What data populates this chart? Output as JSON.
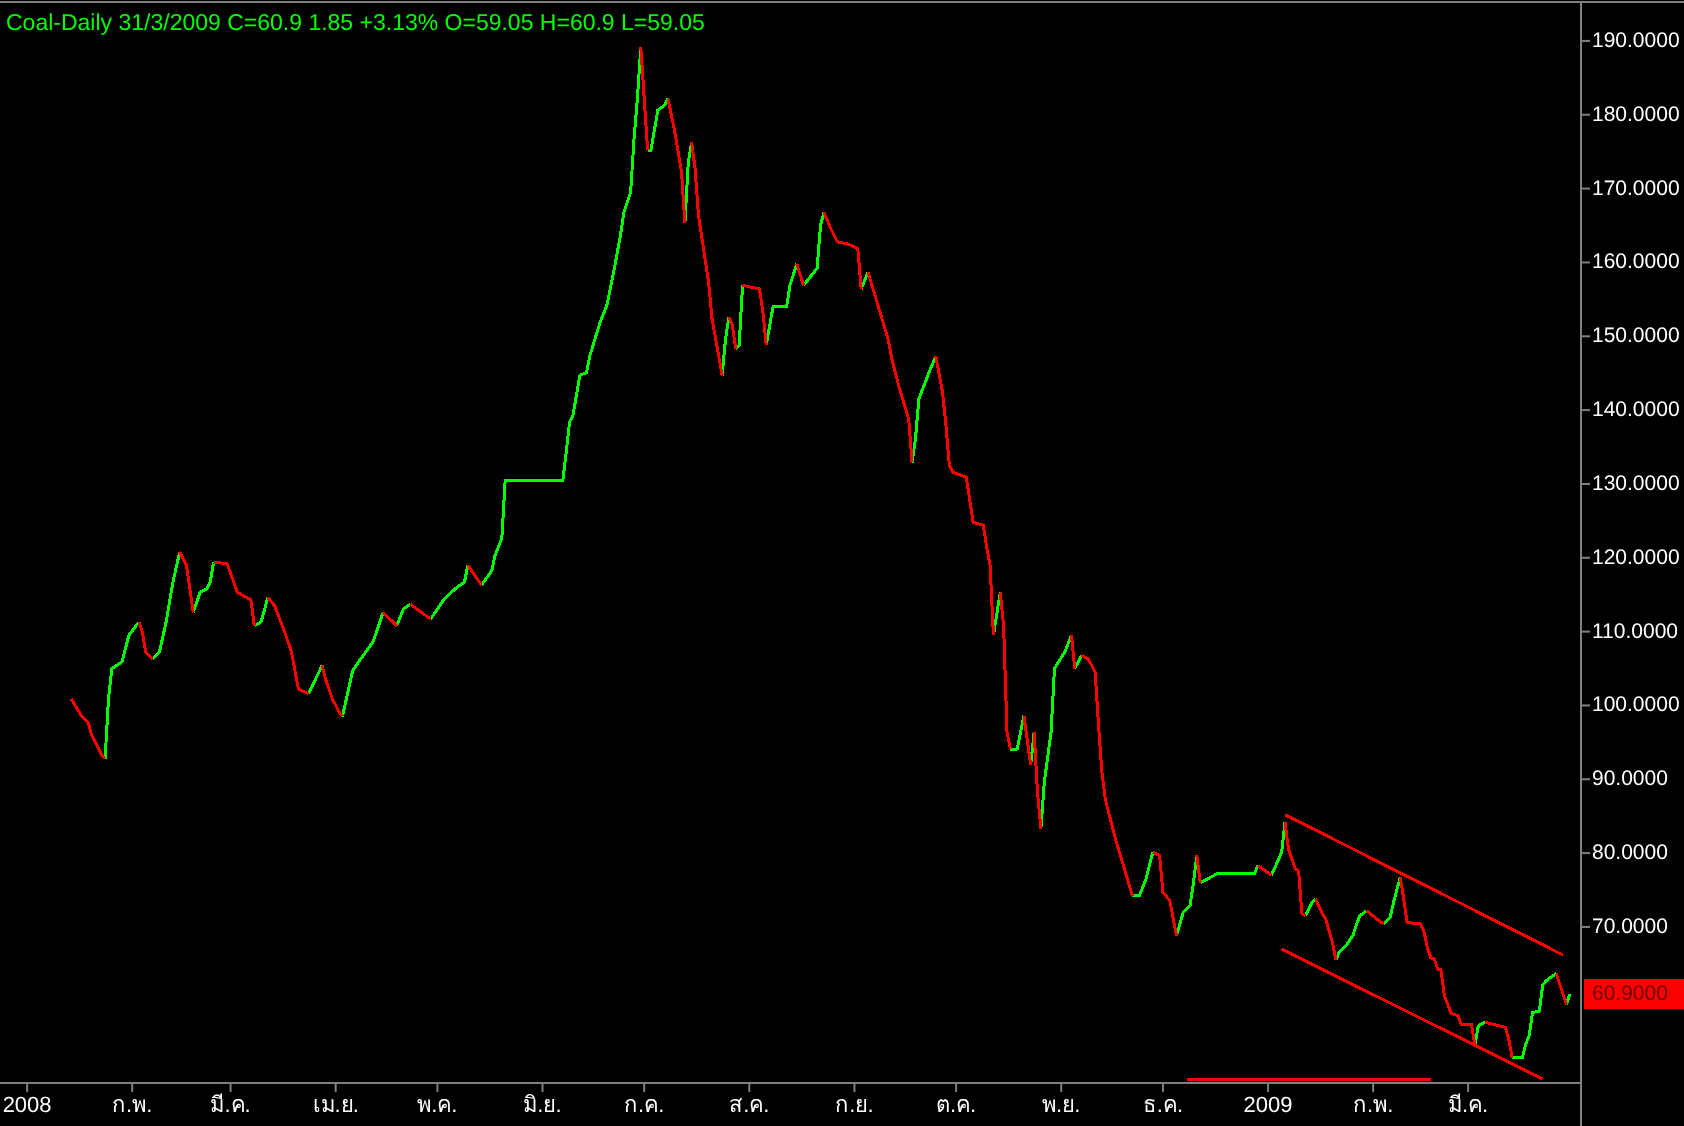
{
  "chart_data": {
    "type": "line",
    "title": "Coal-Daily 31/3/2009 C=60.9 1.85 +3.13% O=59.05 H=60.9 L=59.05",
    "xlim": [
      "2007-12-24",
      "2009-04-03"
    ],
    "xticks": [
      {
        "value": "2008-01-01",
        "label": "2008"
      },
      {
        "value": "2008-02-01",
        "label": "ก.พ."
      },
      {
        "value": "2008-03-01",
        "label": "มี.ค."
      },
      {
        "value": "2008-04-01",
        "label": "เม.ย."
      },
      {
        "value": "2008-05-01",
        "label": "พ.ค."
      },
      {
        "value": "2008-06-01",
        "label": "มิ.ย."
      },
      {
        "value": "2008-07-01",
        "label": "ก.ค."
      },
      {
        "value": "2008-08-01",
        "label": "ส.ค."
      },
      {
        "value": "2008-09-01",
        "label": "ก.ย."
      },
      {
        "value": "2008-10-01",
        "label": "ต.ค."
      },
      {
        "value": "2008-11-01",
        "label": "พ.ย."
      },
      {
        "value": "2008-12-01",
        "label": "ธ.ค."
      },
      {
        "value": "2009-01-01",
        "label": "2009"
      },
      {
        "value": "2009-02-01",
        "label": "ก.พ."
      },
      {
        "value": "2009-03-01",
        "label": "มี.ค."
      }
    ],
    "ylim": [
      49,
      195
    ],
    "yticks": [
      {
        "value": 190,
        "label": "190.0000"
      },
      {
        "value": 180,
        "label": "180.0000"
      },
      {
        "value": 170,
        "label": "170.0000"
      },
      {
        "value": 160,
        "label": "160.0000"
      },
      {
        "value": 150,
        "label": "150.0000"
      },
      {
        "value": 140,
        "label": "140.0000"
      },
      {
        "value": 130,
        "label": "130.0000"
      },
      {
        "value": 120,
        "label": "120.0000"
      },
      {
        "value": 110,
        "label": "110.0000"
      },
      {
        "value": 100,
        "label": "100.0000"
      },
      {
        "value": 90,
        "label": "90.0000"
      },
      {
        "value": 80,
        "label": "80.0000"
      },
      {
        "value": 70,
        "label": "70.0000"
      }
    ],
    "series": [
      {
        "color": "#00ff00",
        "x": [
          "2008-01-24",
          "2008-01-25",
          "2008-01-26",
          "2008-01-29",
          "2008-01-31",
          "2008-02-03"
        ],
        "values": [
          92.8,
          100.9,
          105.0,
          105.9,
          109.5,
          111.3
        ]
      },
      {
        "color": "#00ff00",
        "x": [
          "2008-02-07",
          "2008-02-09",
          "2008-02-11",
          "2008-02-13",
          "2008-02-15"
        ],
        "values": [
          106.3,
          107.2,
          111.3,
          116.7,
          120.8
        ]
      },
      {
        "color": "#00ff00",
        "x": [
          "2008-02-19",
          "2008-02-21",
          "2008-02-23",
          "2008-02-24",
          "2008-02-25"
        ],
        "values": [
          112.6,
          115.3,
          115.8,
          116.7,
          119.4
        ]
      },
      {
        "color": "#00ff00",
        "x": [
          "2008-03-08",
          "2008-03-10",
          "2008-03-12"
        ],
        "values": [
          110.8,
          111.3,
          114.6
        ]
      },
      {
        "color": "#00ff00",
        "x": [
          "2008-03-24",
          "2008-03-28"
        ],
        "values": [
          101.6,
          105.4
        ]
      },
      {
        "color": "#00ff00",
        "x": [
          "2008-04-03",
          "2008-04-06",
          "2008-04-07",
          "2008-04-12",
          "2008-04-13",
          "2008-04-15"
        ],
        "values": [
          98.5,
          104.7,
          105.4,
          108.6,
          109.9,
          112.6
        ]
      },
      {
        "color": "#00ff00",
        "x": [
          "2008-04-19",
          "2008-04-21",
          "2008-04-23"
        ],
        "values": [
          110.8,
          113.1,
          113.7
        ]
      },
      {
        "color": "#00ff00",
        "x": [
          "2008-04-29",
          "2008-05-03",
          "2008-05-07",
          "2008-05-09",
          "2008-05-10"
        ],
        "values": [
          111.7,
          114.4,
          116.1,
          116.7,
          119.0
        ]
      },
      {
        "color": "#00ff00",
        "x": [
          "2008-05-14",
          "2008-05-17",
          "2008-05-18",
          "2008-05-20",
          "2008-05-21",
          "2008-06-07",
          "2008-06-08",
          "2008-06-09",
          "2008-06-10",
          "2008-06-12",
          "2008-06-14",
          "2008-06-15",
          "2008-06-18",
          "2008-06-20",
          "2008-06-22",
          "2008-06-24",
          "2008-06-25",
          "2008-06-27",
          "2008-06-28",
          "2008-06-29",
          "2008-06-30"
        ],
        "values": [
          116.3,
          118.2,
          120.3,
          122.6,
          130.5,
          130.5,
          134.3,
          138.4,
          139.3,
          144.7,
          145.1,
          147.4,
          151.9,
          154.2,
          158.7,
          163.7,
          166.8,
          169.5,
          176.8,
          182.2,
          189.2
        ]
      },
      {
        "color": "#00ff00",
        "x": [
          "2008-07-02",
          "2008-07-03",
          "2008-07-05",
          "2008-07-07",
          "2008-07-08"
        ],
        "values": [
          175.2,
          175.2,
          180.6,
          181.3,
          182.2
        ]
      },
      {
        "color": "#00ff00",
        "x": [
          "2008-07-13",
          "2008-07-14",
          "2008-07-15"
        ],
        "values": [
          165.3,
          173.6,
          176.3
        ]
      },
      {
        "color": "#00ff00",
        "x": [
          "2008-07-24",
          "2008-07-25",
          "2008-07-26"
        ],
        "values": [
          144.7,
          149.7,
          152.6
        ]
      },
      {
        "color": "#00ff00",
        "x": [
          "2008-07-28",
          "2008-07-29",
          "2008-07-30"
        ],
        "values": [
          148.3,
          148.8,
          156.9
        ]
      },
      {
        "color": "#00ff00",
        "x": [
          "2008-08-06",
          "2008-08-08",
          "2008-08-12",
          "2008-08-13",
          "2008-08-15"
        ],
        "values": [
          148.8,
          154.0,
          154.0,
          156.9,
          159.8
        ]
      },
      {
        "color": "#00ff00",
        "x": [
          "2008-08-17",
          "2008-08-21",
          "2008-08-22",
          "2008-08-23"
        ],
        "values": [
          156.9,
          159.2,
          165.0,
          166.8
        ]
      },
      {
        "color": "#00ff00",
        "x": [
          "2008-09-03",
          "2008-09-05"
        ],
        "values": [
          156.4,
          158.7
        ]
      },
      {
        "color": "#00ff00",
        "x": [
          "2008-09-18",
          "2008-09-19",
          "2008-09-20",
          "2008-09-23",
          "2008-09-25"
        ],
        "values": [
          132.9,
          136.1,
          141.5,
          145.1,
          147.3
        ]
      },
      {
        "color": "#00ff00",
        "x": [
          "2008-10-12",
          "2008-10-14"
        ],
        "values": [
          109.5,
          115.3
        ]
      },
      {
        "color": "#00ff00",
        "x": [
          "2008-10-17",
          "2008-10-19",
          "2008-10-21"
        ],
        "values": [
          94.1,
          94.1,
          98.6
        ]
      },
      {
        "color": "#00ff00",
        "x": [
          "2008-10-23",
          "2008-10-24"
        ],
        "values": [
          91.9,
          96.4
        ]
      },
      {
        "color": "#00ff00",
        "x": [
          "2008-10-26",
          "2008-10-27",
          "2008-10-29",
          "2008-10-30",
          "2008-11-02",
          "2008-11-04"
        ],
        "values": [
          83.3,
          89.6,
          96.4,
          105.0,
          107.2,
          109.5
        ]
      },
      {
        "color": "#00ff00",
        "x": [
          "2008-11-05",
          "2008-11-07"
        ],
        "values": [
          105.0,
          106.8
        ]
      },
      {
        "color": "#00ff00",
        "x": [
          "2008-11-22",
          "2008-11-24",
          "2008-11-26",
          "2008-11-28"
        ],
        "values": [
          74.2,
          74.2,
          76.5,
          80.1
        ]
      },
      {
        "color": "#00ff00",
        "x": [
          "2008-12-05",
          "2008-12-07",
          "2008-12-09",
          "2008-12-10",
          "2008-12-11"
        ],
        "values": [
          68.8,
          72.0,
          72.9,
          76.0,
          79.7
        ]
      },
      {
        "color": "#00ff00",
        "x": [
          "2008-12-12",
          "2008-12-17",
          "2008-12-24",
          "2008-12-28",
          "2008-12-29"
        ],
        "values": [
          76.0,
          77.2,
          77.2,
          77.2,
          78.3
        ]
      },
      {
        "color": "#00ff00",
        "x": [
          "2009-01-02",
          "2009-01-05",
          "2009-01-06"
        ],
        "values": [
          77.0,
          80.1,
          84.2
        ]
      },
      {
        "color": "#00ff00",
        "x": [
          "2009-01-12",
          "2009-01-14",
          "2009-01-15"
        ],
        "values": [
          71.5,
          73.3,
          73.8
        ]
      },
      {
        "color": "#00ff00",
        "x": [
          "2009-01-21",
          "2009-01-22",
          "2009-01-24",
          "2009-01-26",
          "2009-01-27",
          "2009-01-28",
          "2009-01-30"
        ],
        "values": [
          65.5,
          66.6,
          67.5,
          68.8,
          70.2,
          71.5,
          72.2
        ]
      },
      {
        "color": "#00ff00",
        "x": [
          "2009-02-04",
          "2009-02-06",
          "2009-02-07",
          "2009-02-08",
          "2009-02-09"
        ],
        "values": [
          70.4,
          71.3,
          73.3,
          75.1,
          76.7
        ]
      },
      {
        "color": "#00ff00",
        "x": [
          "2009-03-03",
          "2009-03-04",
          "2009-03-06"
        ],
        "values": [
          53.9,
          56.6,
          57.1
        ]
      },
      {
        "color": "#00ff00",
        "x": [
          "2009-03-14",
          "2009-03-17",
          "2009-03-18",
          "2009-03-19",
          "2009-03-20",
          "2009-03-22",
          "2009-03-23",
          "2009-03-24",
          "2009-03-27"
        ],
        "values": [
          52.3,
          52.3,
          54.1,
          55.3,
          58.4,
          58.6,
          62.1,
          62.7,
          63.7
        ]
      },
      {
        "color": "#00ff00",
        "x": [
          "2009-03-30",
          "2009-03-31"
        ],
        "values": [
          59.5,
          60.9
        ]
      },
      {
        "color": "#ff0000",
        "x": [
          "2008-01-14",
          "2008-01-17",
          "2008-01-19",
          "2008-01-20",
          "2008-01-23",
          "2008-01-24"
        ],
        "values": [
          100.9,
          98.6,
          97.7,
          96.0,
          93.3,
          92.8
        ]
      },
      {
        "color": "#ff0000",
        "x": [
          "2008-02-03",
          "2008-02-04",
          "2008-02-05",
          "2008-02-07"
        ],
        "values": [
          111.3,
          109.9,
          107.2,
          106.3
        ]
      },
      {
        "color": "#ff0000",
        "x": [
          "2008-02-15",
          "2008-02-17",
          "2008-02-19"
        ],
        "values": [
          120.8,
          119.0,
          112.6
        ]
      },
      {
        "color": "#ff0000",
        "x": [
          "2008-02-25",
          "2008-02-29",
          "2008-03-03",
          "2008-03-07",
          "2008-03-08"
        ],
        "values": [
          119.4,
          119.2,
          115.3,
          114.3,
          110.8
        ]
      },
      {
        "color": "#ff0000",
        "x": [
          "2008-03-12",
          "2008-03-14",
          "2008-03-17",
          "2008-03-19",
          "2008-03-21",
          "2008-03-24"
        ],
        "values": [
          114.6,
          113.5,
          109.9,
          107.2,
          102.2,
          101.6
        ]
      },
      {
        "color": "#ff0000",
        "x": [
          "2008-03-28",
          "2008-03-29",
          "2008-03-31",
          "2008-04-02",
          "2008-04-03"
        ],
        "values": [
          105.4,
          103.6,
          100.9,
          99.1,
          98.5
        ]
      },
      {
        "color": "#ff0000",
        "x": [
          "2008-04-15",
          "2008-04-19"
        ],
        "values": [
          112.6,
          110.8
        ]
      },
      {
        "color": "#ff0000",
        "x": [
          "2008-04-23",
          "2008-04-29"
        ],
        "values": [
          113.7,
          111.7
        ]
      },
      {
        "color": "#ff0000",
        "x": [
          "2008-05-10",
          "2008-05-14"
        ],
        "values": [
          119.0,
          116.3
        ]
      },
      {
        "color": "#ff0000",
        "x": [
          "2008-06-30",
          "2008-07-02"
        ],
        "values": [
          189.2,
          175.2
        ]
      },
      {
        "color": "#ff0000",
        "x": [
          "2008-07-08",
          "2008-07-10",
          "2008-07-12",
          "2008-07-13"
        ],
        "values": [
          182.2,
          177.7,
          172.3,
          165.3
        ]
      },
      {
        "color": "#ff0000",
        "x": [
          "2008-07-15",
          "2008-07-16",
          "2008-07-17",
          "2008-07-20",
          "2008-07-21",
          "2008-07-24"
        ],
        "values": [
          176.3,
          172.7,
          166.4,
          157.3,
          152.4,
          144.7
        ]
      },
      {
        "color": "#ff0000",
        "x": [
          "2008-07-26",
          "2008-07-27",
          "2008-07-28"
        ],
        "values": [
          152.6,
          151.5,
          148.3
        ]
      },
      {
        "color": "#ff0000",
        "x": [
          "2008-07-30",
          "2008-08-04",
          "2008-08-05",
          "2008-08-06"
        ],
        "values": [
          156.9,
          156.4,
          153.3,
          148.8
        ]
      },
      {
        "color": "#ff0000",
        "x": [
          "2008-08-15",
          "2008-08-17"
        ],
        "values": [
          159.8,
          156.9
        ]
      },
      {
        "color": "#ff0000",
        "x": [
          "2008-08-23",
          "2008-08-25",
          "2008-08-27",
          "2008-08-30",
          "2008-09-02",
          "2008-09-03"
        ],
        "values": [
          166.8,
          164.6,
          162.8,
          162.5,
          161.9,
          156.4
        ]
      },
      {
        "color": "#ff0000",
        "x": [
          "2008-09-05",
          "2008-09-11",
          "2008-09-12",
          "2008-09-14",
          "2008-09-17",
          "2008-09-18"
        ],
        "values": [
          158.7,
          149.5,
          147.0,
          143.4,
          138.8,
          132.9
        ]
      },
      {
        "color": "#ff0000",
        "x": [
          "2008-09-25",
          "2008-09-27",
          "2008-09-28",
          "2008-09-29",
          "2008-09-30",
          "2008-10-04",
          "2008-10-06",
          "2008-10-09",
          "2008-10-10",
          "2008-10-11",
          "2008-10-12"
        ],
        "values": [
          147.3,
          142.4,
          137.9,
          132.5,
          131.6,
          130.9,
          124.8,
          124.4,
          121.5,
          119.0,
          109.5
        ]
      },
      {
        "color": "#ff0000",
        "x": [
          "2008-10-14",
          "2008-10-15",
          "2008-10-16",
          "2008-10-17"
        ],
        "values": [
          115.3,
          110.8,
          96.4,
          94.1
        ]
      },
      {
        "color": "#ff0000",
        "x": [
          "2008-10-21",
          "2008-10-23"
        ],
        "values": [
          98.6,
          91.9
        ]
      },
      {
        "color": "#ff0000",
        "x": [
          "2008-10-24",
          "2008-10-25",
          "2008-10-26"
        ],
        "values": [
          96.4,
          88.2,
          83.3
        ]
      },
      {
        "color": "#ff0000",
        "x": [
          "2008-11-04",
          "2008-11-05"
        ],
        "values": [
          109.5,
          105.0
        ]
      },
      {
        "color": "#ff0000",
        "x": [
          "2008-11-07",
          "2008-11-09",
          "2008-11-11",
          "2008-11-12",
          "2008-11-13",
          "2008-11-14",
          "2008-11-16",
          "2008-11-17",
          "2008-11-22"
        ],
        "values": [
          106.8,
          106.3,
          104.5,
          97.3,
          90.9,
          87.3,
          83.7,
          81.9,
          74.2
        ]
      },
      {
        "color": "#ff0000",
        "x": [
          "2008-11-28",
          "2008-11-30",
          "2008-12-01",
          "2008-12-03",
          "2008-12-05"
        ],
        "values": [
          80.1,
          79.7,
          74.7,
          73.6,
          68.8
        ]
      },
      {
        "color": "#ff0000",
        "x": [
          "2008-12-11",
          "2008-12-12"
        ],
        "values": [
          79.7,
          76.0
        ]
      },
      {
        "color": "#ff0000",
        "x": [
          "2008-12-29",
          "2009-01-02"
        ],
        "values": [
          78.3,
          77.0
        ]
      },
      {
        "color": "#ff0000",
        "x": [
          "2009-01-06",
          "2009-01-07",
          "2009-01-09",
          "2009-01-10",
          "2009-01-11",
          "2009-01-12"
        ],
        "values": [
          84.2,
          80.6,
          77.9,
          77.6,
          71.8,
          71.5
        ]
      },
      {
        "color": "#ff0000",
        "x": [
          "2009-01-15",
          "2009-01-17",
          "2009-01-18",
          "2009-01-20",
          "2009-01-21"
        ],
        "values": [
          73.8,
          71.8,
          71.1,
          67.9,
          65.5
        ]
      },
      {
        "color": "#ff0000",
        "x": [
          "2009-01-30",
          "2009-02-04"
        ],
        "values": [
          72.2,
          70.4
        ]
      },
      {
        "color": "#ff0000",
        "x": [
          "2009-02-09",
          "2009-02-10",
          "2009-02-11",
          "2009-02-15",
          "2009-02-16",
          "2009-02-17",
          "2009-02-18",
          "2009-02-19",
          "2009-02-20",
          "2009-02-21",
          "2009-02-22",
          "2009-02-24",
          "2009-02-26",
          "2009-02-27",
          "2009-03-02",
          "2009-03-03"
        ],
        "values": [
          76.7,
          73.8,
          70.6,
          70.4,
          69.3,
          67.2,
          65.8,
          65.7,
          64.3,
          64.2,
          60.7,
          58.3,
          58.0,
          56.8,
          56.8,
          53.9
        ]
      },
      {
        "color": "#ff0000",
        "x": [
          "2009-03-06",
          "2009-03-12",
          "2009-03-13",
          "2009-03-14"
        ],
        "values": [
          57.1,
          56.4,
          54.8,
          52.3
        ]
      },
      {
        "color": "#ff0000",
        "x": [
          "2009-03-27",
          "2009-03-30"
        ],
        "values": [
          63.7,
          59.5
        ]
      },
      {
        "color": "#ff0000",
        "x": [
          "2009-01-06",
          "2009-03-29"
        ],
        "values": [
          85.2,
          66.2
        ]
      },
      {
        "color": "#ff0000",
        "x": [
          "2009-01-05",
          "2009-03-23"
        ],
        "values": [
          67.0,
          49.4
        ]
      },
      {
        "color": "#ff0000",
        "x": [
          "2008-12-08",
          "2009-02-18"
        ],
        "values": [
          49.4,
          49.4
        ]
      }
    ],
    "annotations": [
      "60.9000"
    ]
  }
}
